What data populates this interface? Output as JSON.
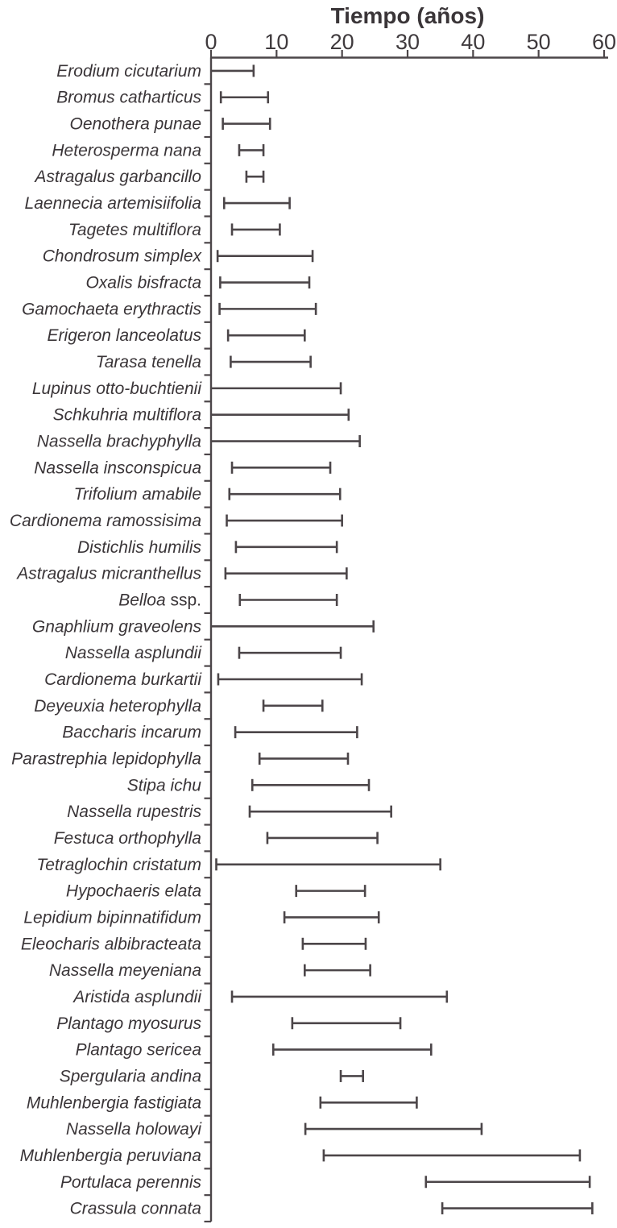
{
  "chart_data": {
    "type": "bar",
    "subtype": "horizontal_range_interval",
    "title": "Tiempo (años)",
    "xlabel": "Tiempo (años)",
    "ylabel": "",
    "xlim": [
      0,
      60
    ],
    "x_ticks": [
      0,
      10,
      20,
      30,
      40,
      50,
      60
    ],
    "grid": false,
    "legend": false,
    "axis_position": "top",
    "units": "años",
    "species": [
      {
        "name": "Erodium cicutarium",
        "min": 0,
        "max": 6.5
      },
      {
        "name": "Bromus catharticus",
        "min": 1.5,
        "max": 8.7
      },
      {
        "name": "Oenothera punae",
        "min": 1.8,
        "max": 9
      },
      {
        "name": "Heterosperma nana",
        "min": 4.3,
        "max": 8
      },
      {
        "name": "Astragalus garbancillo",
        "min": 5.4,
        "max": 8
      },
      {
        "name": "Laennecia artemisiifolia",
        "min": 2,
        "max": 12
      },
      {
        "name": "Tagetes multiflora",
        "min": 3.2,
        "max": 10.5
      },
      {
        "name": "Chondrosum simplex",
        "min": 1,
        "max": 15.5
      },
      {
        "name": "Oxalis bisfracta",
        "min": 1.4,
        "max": 15
      },
      {
        "name": "Gamochaeta erythractis",
        "min": 1.3,
        "max": 16
      },
      {
        "name": "Erigeron lanceolatus",
        "min": 2.6,
        "max": 14.3
      },
      {
        "name": "Tarasa tenella",
        "min": 3,
        "max": 15.2
      },
      {
        "name": "Lupinus otto-buchtienii",
        "min": 0,
        "max": 19.8
      },
      {
        "name": "Schkuhria multiflora",
        "min": 0,
        "max": 21
      },
      {
        "name": "Nassella brachyphylla",
        "min": 0,
        "max": 22.7
      },
      {
        "name": "Nassella insconspicua",
        "min": 3.2,
        "max": 18.2
      },
      {
        "name": "Trifolium amabile",
        "min": 2.8,
        "max": 19.7
      },
      {
        "name": "Cardionema ramossisima",
        "min": 2.4,
        "max": 20
      },
      {
        "name": "Distichlis humilis",
        "min": 3.8,
        "max": 19.2
      },
      {
        "name": "Astragalus micranthellus",
        "min": 2.2,
        "max": 20.7
      },
      {
        "name": "Belloa",
        "suffix": "ssp.",
        "min": 4.4,
        "max": 19.2
      },
      {
        "name": "Gnaphlium graveolens",
        "min": 0,
        "max": 24.8
      },
      {
        "name": "Nassella asplundii",
        "min": 4.3,
        "max": 19.8
      },
      {
        "name": "Cardionema burkartii",
        "min": 1.1,
        "max": 23
      },
      {
        "name": "Deyeuxia heterophylla",
        "min": 8,
        "max": 17
      },
      {
        "name": "Baccharis incarum",
        "min": 3.7,
        "max": 22.3
      },
      {
        "name": "Parastrephia lepidophylla",
        "min": 7.4,
        "max": 20.9
      },
      {
        "name": "Stipa ichu",
        "min": 6.3,
        "max": 24.1
      },
      {
        "name": "Nassella rupestris",
        "min": 5.9,
        "max": 27.5
      },
      {
        "name": "Festuca orthophylla",
        "min": 8.6,
        "max": 25.4
      },
      {
        "name": "Tetraglochin cristatum",
        "min": 0.8,
        "max": 35
      },
      {
        "name": "Hypochaeris elata",
        "min": 13,
        "max": 23.5
      },
      {
        "name": "Lepidium bipinnatifidum",
        "min": 11.2,
        "max": 25.6
      },
      {
        "name": "Eleocharis albibracteata",
        "min": 14,
        "max": 23.6
      },
      {
        "name": "Nassella meyeniana",
        "min": 14.3,
        "max": 24.3
      },
      {
        "name": "Aristida asplundii",
        "min": 3.2,
        "max": 36
      },
      {
        "name": "Plantago myosurus",
        "min": 12.4,
        "max": 28.9
      },
      {
        "name": "Plantago sericea",
        "min": 9.5,
        "max": 33.6
      },
      {
        "name": "Spergularia andina",
        "min": 19.8,
        "max": 23.2
      },
      {
        "name": "Muhlenbergia fastigiata",
        "min": 16.7,
        "max": 31.4
      },
      {
        "name": "Nassella holowayi",
        "min": 14.4,
        "max": 41.3
      },
      {
        "name": "Muhlenbergia peruviana",
        "min": 17.2,
        "max": 56.3
      },
      {
        "name": "Portulaca perennis",
        "min": 32.8,
        "max": 57.8
      },
      {
        "name": "Crassula connata",
        "min": 35.3,
        "max": 58.2
      }
    ]
  },
  "styles": {
    "ink_color": "#3a3538",
    "line_color": "#4c4649",
    "background_color": "#ffffff"
  }
}
